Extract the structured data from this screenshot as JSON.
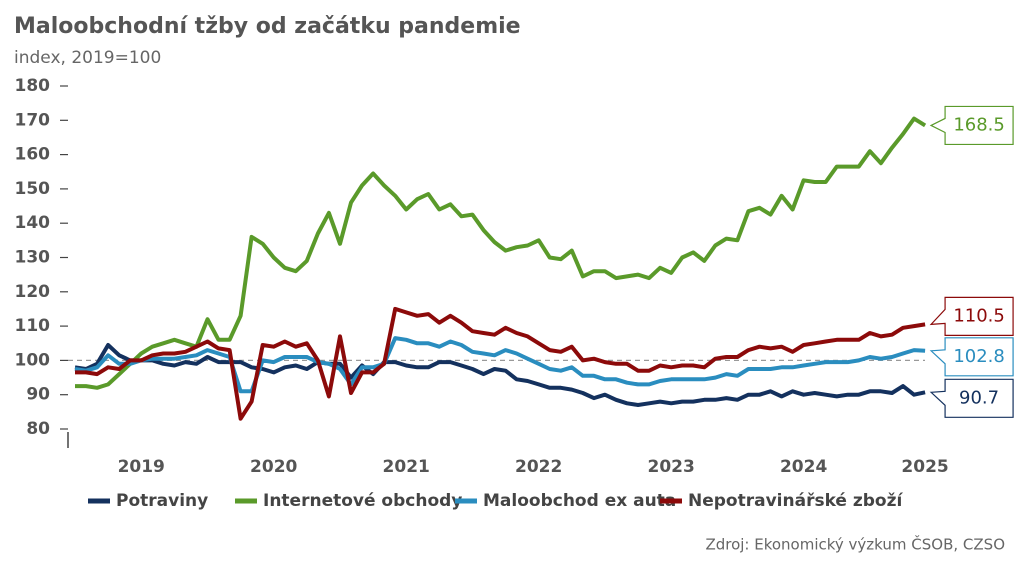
{
  "chart_data": {
    "type": "line",
    "title": "Maloobchodní tžby od začátku pandemie",
    "subtitle": "index, 2019=100",
    "source": "Zdroj: Ekonomický výzkum ČSOB, CZSO",
    "categories": [
      null,
      null,
      null,
      null,
      null,
      null,
      "2019",
      null,
      null,
      null,
      null,
      null,
      null,
      null,
      null,
      null,
      null,
      null,
      "2020",
      null,
      null,
      null,
      null,
      null,
      null,
      null,
      null,
      null,
      null,
      null,
      "2021",
      null,
      null,
      null,
      null,
      null,
      null,
      null,
      null,
      null,
      null,
      null,
      "2022",
      null,
      null,
      null,
      null,
      null,
      null,
      null,
      null,
      null,
      null,
      null,
      "2023",
      null,
      null,
      null,
      null,
      null,
      null,
      null,
      null,
      null,
      null,
      null,
      "2024",
      null,
      null,
      null,
      null,
      null,
      null,
      null,
      null,
      null,
      null,
      "2025"
    ],
    "ylim": [
      80,
      180
    ],
    "yticks": [
      80,
      90,
      100,
      110,
      120,
      130,
      140,
      150,
      160,
      170,
      180
    ],
    "reference_line": 100,
    "series": [
      {
        "name": "Potraviny",
        "color": "#14315e",
        "values": [
          98,
          97.5,
          99,
          104.5,
          101.5,
          100,
          100,
          100,
          99,
          98.5,
          99.5,
          99,
          101,
          99.5,
          99.5,
          99.5,
          98,
          97.5,
          96.5,
          98,
          98.5,
          97.5,
          99.5,
          99,
          99,
          95,
          98.5,
          96,
          99.5,
          99.5,
          98.5,
          98,
          98,
          99.5,
          99.5,
          98.5,
          97.5,
          96,
          97.5,
          97,
          94.5,
          94,
          93,
          92,
          92,
          91.5,
          90.5,
          89,
          90,
          88.5,
          87.5,
          87,
          87.5,
          88,
          87.5,
          88,
          88,
          88.5,
          88.5,
          89,
          88.5,
          90,
          90,
          91,
          89.5,
          91,
          90,
          90.5,
          90,
          89.5,
          90,
          90,
          91,
          91,
          90.5,
          92.5,
          90,
          90.7
        ]
      },
      {
        "name": "Internetové obchody",
        "color": "#5a9a2a",
        "values": [
          92.5,
          92.5,
          92,
          93,
          96,
          99,
          102,
          104,
          105,
          106,
          105,
          104,
          112,
          106,
          106,
          113,
          136,
          134,
          130,
          127,
          126,
          129,
          137,
          143,
          134,
          146,
          151,
          154.5,
          151,
          148,
          144,
          147,
          148.5,
          144,
          145.5,
          142,
          142.5,
          138,
          134.5,
          132,
          133,
          133.5,
          135,
          130,
          129.5,
          132,
          124.5,
          126,
          126,
          124,
          124.5,
          125,
          124,
          127,
          125.5,
          130,
          131.5,
          129,
          133.5,
          135.5,
          135,
          143.5,
          144.5,
          142.5,
          148,
          144,
          152.5,
          152,
          152,
          156.5,
          156.5,
          156.5,
          161,
          157.5,
          162,
          166,
          170.5,
          168.5
        ]
      },
      {
        "name": "Maloobchod ex auta",
        "color": "#2a8dbf",
        "values": [
          97.5,
          97,
          98,
          101.5,
          99,
          99,
          100,
          100.5,
          100.5,
          100.5,
          101,
          101.5,
          103,
          102,
          101,
          91,
          91,
          100,
          99.5,
          101,
          101,
          101,
          99.5,
          99,
          97.5,
          93,
          98,
          98,
          99,
          106.5,
          106,
          105,
          105,
          104,
          105.5,
          104.5,
          102.5,
          102,
          101.5,
          103,
          102,
          100.5,
          99,
          97.5,
          97,
          98,
          95.5,
          95.5,
          94.5,
          94.5,
          93.5,
          93,
          93,
          94,
          94.5,
          94.5,
          94.5,
          94.5,
          95,
          96,
          95.5,
          97.5,
          97.5,
          97.5,
          98,
          98,
          98.5,
          99,
          99.5,
          99.5,
          99.5,
          100,
          101,
          100.5,
          101,
          102,
          103,
          102.8
        ]
      },
      {
        "name": "Nepotravinářské zboží",
        "color": "#8c0a0a",
        "values": [
          96.5,
          96.5,
          96,
          98,
          97.5,
          100,
          100,
          101.5,
          102,
          102,
          102.5,
          104,
          105.5,
          103.5,
          103,
          83,
          88,
          104.5,
          104,
          105.5,
          104,
          105,
          100,
          89.5,
          107,
          90.5,
          96.5,
          96.5,
          99,
          115,
          114,
          113,
          113.5,
          111,
          113,
          111,
          108.5,
          108,
          107.5,
          109.5,
          108,
          107,
          105,
          103,
          102.5,
          104,
          100,
          100.5,
          99.5,
          99,
          99,
          97,
          97,
          98.5,
          98,
          98.5,
          98.5,
          98,
          100.5,
          101,
          101,
          103,
          104,
          103.5,
          104,
          102.5,
          104.5,
          105,
          105.5,
          106,
          106,
          106,
          108,
          107,
          107.5,
          109.5,
          110,
          110.5
        ]
      }
    ]
  }
}
